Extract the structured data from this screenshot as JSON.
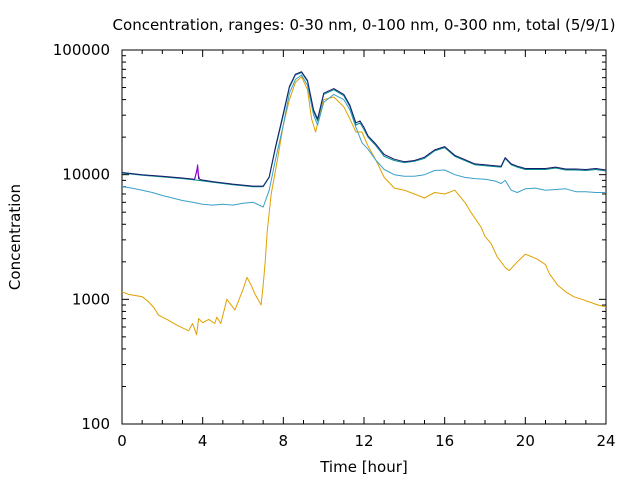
{
  "chart_data": {
    "type": "line",
    "title": "Concentration, ranges: 0-30 nm, 0-100 nm, 0-300 nm, total (5/9/1)",
    "xlabel": "Time [hour]",
    "ylabel": "Concentration",
    "xlim": [
      0,
      24
    ],
    "ylim": [
      100,
      100000
    ],
    "yscale": "log",
    "xticks": [
      "0",
      "4",
      "8",
      "12",
      "16",
      "20",
      "24"
    ],
    "yticks": [
      "100",
      "1000",
      "10000",
      "100000"
    ],
    "grid": false,
    "legend": "none",
    "series": [
      {
        "color": "#e0a000",
        "x": [
          0,
          0.3,
          1,
          1.3,
          1.6,
          1.8,
          2,
          2.3,
          2.8,
          3.3,
          3.5,
          3.7,
          3.8,
          4,
          4.3,
          4.6,
          4.7,
          4.9,
          5.2,
          5.6,
          6,
          6.2,
          6.4,
          6.6,
          6.9,
          7,
          7.1,
          7.2,
          7.4,
          7.7,
          8,
          8.3,
          8.6,
          8.9,
          9.2,
          9.4,
          9.6,
          9.8,
          10,
          10.5,
          11,
          11.3,
          11.6,
          11.9,
          12.2,
          12.6,
          13,
          13.5,
          14,
          14.5,
          15,
          15.5,
          16,
          16.5,
          17,
          17.3,
          17.8,
          18,
          18.3,
          18.6,
          19,
          19.2,
          19.6,
          20,
          20.3,
          20.6,
          21,
          21.2,
          21.6,
          22,
          22.4,
          22.8,
          23.2,
          23.6,
          24
        ],
        "values": [
          1150,
          1100,
          1050,
          960,
          850,
          750,
          720,
          680,
          610,
          560,
          640,
          520,
          700,
          650,
          690,
          640,
          720,
          640,
          1000,
          820,
          1200,
          1500,
          1300,
          1100,
          900,
          1300,
          2000,
          3500,
          7000,
          13000,
          25000,
          40000,
          55000,
          61000,
          48000,
          28000,
          22000,
          30000,
          40000,
          42000,
          35000,
          28000,
          22000,
          22000,
          17000,
          13000,
          9500,
          7800,
          7500,
          7000,
          6500,
          7200,
          7000,
          7500,
          6000,
          5000,
          3800,
          3200,
          2800,
          2200,
          1800,
          1700,
          2000,
          2300,
          2200,
          2100,
          1900,
          1600,
          1300,
          1150,
          1050,
          1000,
          950,
          900,
          870
        ]
      },
      {
        "color": "#3aa0c8",
        "x": [
          0,
          0.5,
          1,
          1.5,
          2,
          2.5,
          3,
          3.5,
          4,
          4.5,
          5,
          5.5,
          6,
          6.5,
          7,
          7.3,
          7.6,
          8,
          8.3,
          8.6,
          8.9,
          9.2,
          9.5,
          9.7,
          10,
          10.5,
          11,
          11.3,
          11.6,
          11.9,
          12.2,
          12.6,
          13,
          13.5,
          14,
          14.5,
          15,
          15.5,
          16,
          16.5,
          17,
          17.5,
          18,
          18.5,
          18.8,
          19,
          19.3,
          19.6,
          20,
          20.5,
          21,
          21.5,
          22,
          22.5,
          23,
          23.5,
          24
        ],
        "values": [
          8000,
          7800,
          7500,
          7200,
          6800,
          6500,
          6200,
          6000,
          5800,
          5700,
          5800,
          5700,
          5900,
          6000,
          5500,
          7500,
          13000,
          25000,
          45000,
          58000,
          63000,
          52000,
          30000,
          25000,
          38000,
          44000,
          40000,
          33000,
          24000,
          18000,
          16000,
          13000,
          11000,
          10000,
          9700,
          9700,
          10000,
          10800,
          10900,
          10000,
          9500,
          9300,
          9200,
          8900,
          8500,
          9000,
          7500,
          7200,
          7700,
          7800,
          7500,
          7600,
          7700,
          7300,
          7300,
          7200,
          7200
        ]
      },
      {
        "color": "#008b8b",
        "x": [
          0,
          1,
          2,
          3,
          3.8,
          4.5,
          5.5,
          6.5,
          7,
          7.3,
          7.6,
          8,
          8.3,
          8.6,
          8.9,
          9.2,
          9.5,
          9.7,
          10,
          10.5,
          11,
          11.3,
          11.6,
          11.8,
          12,
          12.2,
          12.6,
          13,
          13.5,
          14,
          14.5,
          15,
          15.5,
          16,
          16.5,
          17,
          17.5,
          18,
          18.5,
          18.8,
          19,
          19.3,
          19.6,
          20,
          20.5,
          21,
          21.5,
          22,
          22.5,
          23,
          23.5,
          24
        ],
        "values": [
          10300,
          9900,
          9600,
          9300,
          9000,
          8700,
          8300,
          8000,
          8000,
          9500,
          16000,
          30000,
          50000,
          63000,
          66000,
          56000,
          32000,
          27000,
          44000,
          48000,
          43000,
          35000,
          25000,
          26000,
          23000,
          20000,
          17000,
          14000,
          13000,
          12500,
          12800,
          13500,
          15500,
          16500,
          14000,
          13000,
          12000,
          11800,
          11600,
          11500,
          13500,
          12000,
          11500,
          11000,
          11000,
          11000,
          11300,
          10900,
          10900,
          10800,
          11000,
          10700
        ]
      },
      {
        "color": "#1a1a6e",
        "x": [
          0,
          1,
          2,
          3,
          3.6,
          3.75,
          3.8,
          3.9,
          4.5,
          5.5,
          6.5,
          7,
          7.3,
          7.6,
          8,
          8.3,
          8.6,
          8.9,
          9.2,
          9.5,
          9.7,
          10,
          10.5,
          11,
          11.3,
          11.6,
          11.8,
          12,
          12.2,
          12.6,
          13,
          13.5,
          14,
          14.5,
          15,
          15.5,
          16,
          16.5,
          17,
          17.5,
          18,
          18.5,
          18.8,
          19,
          19.3,
          19.6,
          20,
          20.5,
          21,
          21.5,
          22,
          22.5,
          23,
          23.5,
          24
        ],
        "values": [
          10400,
          10000,
          9700,
          9400,
          9200,
          11500,
          9300,
          9100,
          8800,
          8400,
          8100,
          8100,
          9600,
          16500,
          31000,
          51000,
          64000,
          67000,
          57000,
          33000,
          28000,
          45000,
          49000,
          44000,
          36000,
          26000,
          27000,
          24000,
          20500,
          17500,
          14500,
          13300,
          12700,
          13000,
          13800,
          15800,
          16800,
          14300,
          13200,
          12200,
          12000,
          11800,
          11700,
          13700,
          12200,
          11700,
          11200,
          11200,
          11200,
          11500,
          11100,
          11100,
          11000,
          11200,
          10900
        ]
      },
      {
        "color": "#9400d3",
        "x": [
          3.6,
          3.7,
          3.75,
          3.8,
          3.85
        ],
        "values": [
          9200,
          10500,
          12000,
          9800,
          9200
        ]
      }
    ]
  }
}
